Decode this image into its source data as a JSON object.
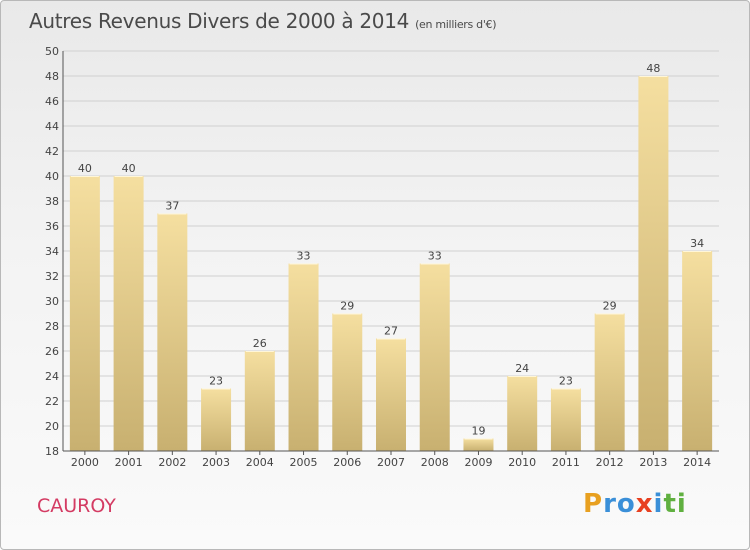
{
  "title": {
    "main": "Autres Revenus Divers de 2000 à 2014",
    "unit": "(en milliers d'€)"
  },
  "town": "CAUROY",
  "logo": {
    "letters": [
      "P",
      "r",
      "o",
      "x",
      "i",
      "t",
      "i"
    ],
    "colors": [
      "#e8a020",
      "#3a8fd8",
      "#3a8fd8",
      "#e84020",
      "#3a8fd8",
      "#60b040",
      "#60b040"
    ]
  },
  "colors": {
    "bar_light": "#f5dfa0",
    "bar_dark": "#c8b070",
    "grid": "#d0d0d0",
    "axis": "#555555",
    "town": "#d43b63"
  },
  "chart_data": {
    "type": "bar",
    "title": "Autres Revenus Divers de 2000 à 2014",
    "subtitle": "(en milliers d'€)",
    "categories": [
      "2000",
      "2001",
      "2002",
      "2003",
      "2004",
      "2005",
      "2006",
      "2007",
      "2008",
      "2009",
      "2010",
      "2011",
      "2012",
      "2013",
      "2014"
    ],
    "values": [
      40,
      40,
      37,
      23,
      26,
      33,
      29,
      27,
      33,
      19,
      24,
      23,
      29,
      48,
      34
    ],
    "ylim": [
      18,
      50
    ],
    "yticks": [
      18,
      20,
      22,
      24,
      26,
      28,
      30,
      32,
      34,
      36,
      38,
      40,
      42,
      44,
      46,
      48,
      50
    ],
    "grid": true,
    "data_labels": true
  }
}
